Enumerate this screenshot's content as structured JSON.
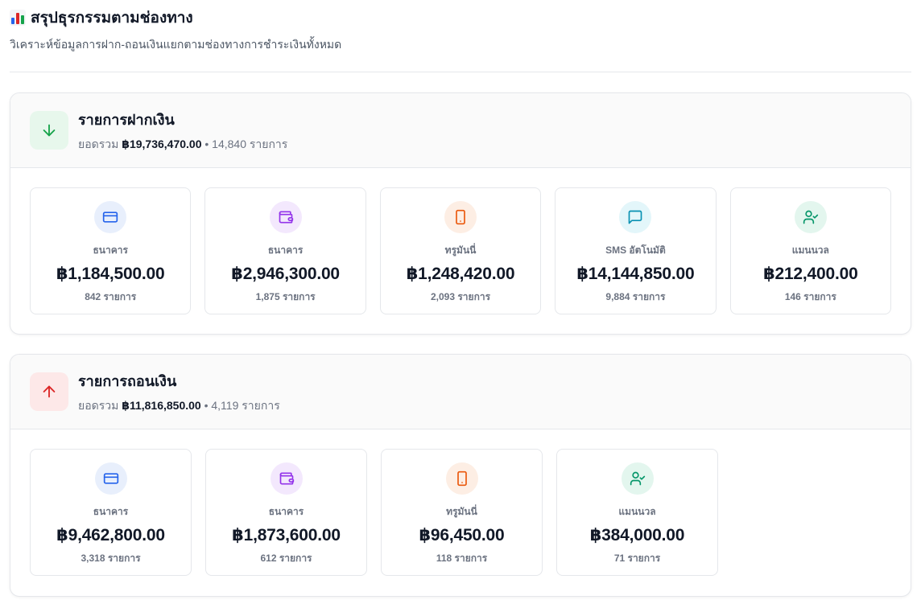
{
  "header": {
    "title": "สรุปธุรกรรมตามช่องทาง",
    "subtitle": "วิเคราะห์ข้อมูลการฝาก-ถอนเงินแยกตามช่องทางการชำระเงินทั้งหมด",
    "icon": "bar-chart-icon"
  },
  "deposit": {
    "title": "รายการฝากเงิน",
    "total_label": "ยอดรวม",
    "total_amount": "฿19,736,470.00",
    "total_count": "• 14,840 รายการ",
    "icon": "arrow-down-icon",
    "accent": "#16a34a",
    "cards": [
      {
        "label": "ธนาคาร",
        "amount": "฿1,184,500.00",
        "count": "842 รายการ",
        "icon": "credit-card-icon",
        "color": "#2563eb",
        "bg": "#e8effc"
      },
      {
        "label": "ธนาคาร",
        "amount": "฿2,946,300.00",
        "count": "1,875 รายการ",
        "icon": "wallet-icon",
        "color": "#9333ea",
        "bg": "#f3e8fd"
      },
      {
        "label": "ทรูมันนี่",
        "amount": "฿1,248,420.00",
        "count": "2,093 รายการ",
        "icon": "smartphone-icon",
        "color": "#ea580c",
        "bg": "#fdeee4"
      },
      {
        "label": "SMS อัตโนมัติ",
        "amount": "฿14,144,850.00",
        "count": "9,884 รายการ",
        "icon": "message-icon",
        "color": "#0891b2",
        "bg": "#e3f6fa"
      },
      {
        "label": "แมนนวล",
        "amount": "฿212,400.00",
        "count": "146 รายการ",
        "icon": "user-check-icon",
        "color": "#059669",
        "bg": "#e3f6ee"
      }
    ]
  },
  "withdraw": {
    "title": "รายการถอนเงิน",
    "total_label": "ยอดรวม",
    "total_amount": "฿11,816,850.00",
    "total_count": "• 4,119 รายการ",
    "icon": "arrow-up-icon",
    "accent": "#dc2626",
    "cards": [
      {
        "label": "ธนาคาร",
        "amount": "฿9,462,800.00",
        "count": "3,318 รายการ",
        "icon": "credit-card-icon",
        "color": "#2563eb",
        "bg": "#e8effc"
      },
      {
        "label": "ธนาคาร",
        "amount": "฿1,873,600.00",
        "count": "612 รายการ",
        "icon": "wallet-icon",
        "color": "#9333ea",
        "bg": "#f3e8fd"
      },
      {
        "label": "ทรูมันนี่",
        "amount": "฿96,450.00",
        "count": "118 รายการ",
        "icon": "smartphone-icon",
        "color": "#ea580c",
        "bg": "#fdeee4"
      },
      {
        "label": "แมนนวล",
        "amount": "฿384,000.00",
        "count": "71 รายการ",
        "icon": "user-check-icon",
        "color": "#059669",
        "bg": "#e3f6ee"
      }
    ]
  }
}
